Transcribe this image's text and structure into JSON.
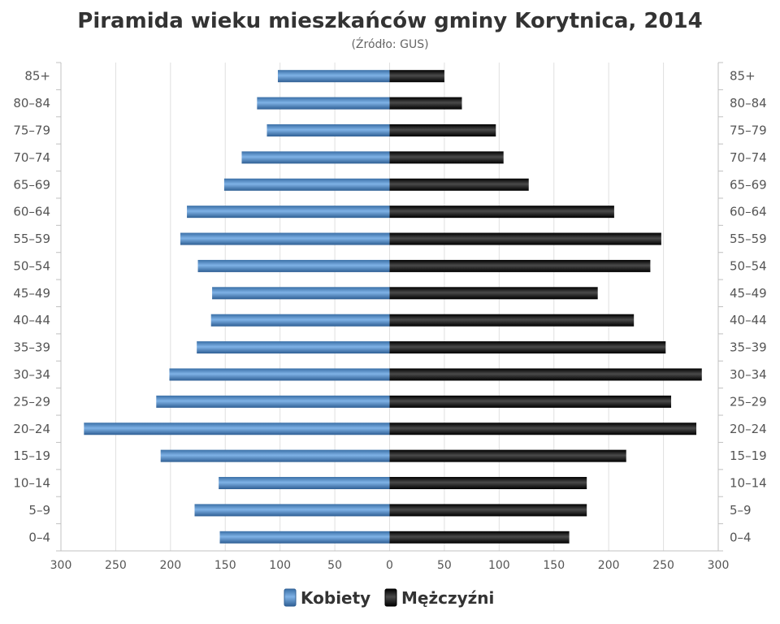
{
  "chart_data": {
    "type": "bar",
    "orientation": "horizontal",
    "layout": "population-pyramid",
    "title": "Piramida wieku mieszkańców gminy Korytnica, 2014",
    "subtitle": "(Źródło: GUS)",
    "categories": [
      "0-4",
      "5-9",
      "10-14",
      "15-19",
      "20-24",
      "25-29",
      "30-34",
      "35-39",
      "40-44",
      "45-49",
      "50-54",
      "55-59",
      "60-64",
      "65-69",
      "70-74",
      "75-79",
      "80-84",
      "85+"
    ],
    "category_labels_display": [
      "0–4",
      "5–9",
      "10–14",
      "15–19",
      "20–24",
      "25–29",
      "30–34",
      "35–39",
      "40–44",
      "45–49",
      "50–54",
      "55–59",
      "60–64",
      "65–69",
      "70–74",
      "75–79",
      "80–84",
      "85+"
    ],
    "series": [
      {
        "name": "Kobiety",
        "side": "left",
        "color": "#4a87c4",
        "values": [
          155,
          178,
          156,
          209,
          279,
          213,
          201,
          176,
          163,
          162,
          175,
          191,
          185,
          151,
          135,
          112,
          121,
          102
        ]
      },
      {
        "name": "Mężczyźni",
        "side": "right",
        "color": "#1a1a1a",
        "values": [
          164,
          180,
          180,
          216,
          280,
          257,
          285,
          252,
          223,
          190,
          238,
          248,
          205,
          127,
          104,
          97,
          66,
          50
        ]
      }
    ],
    "xlim": [
      -300,
      300
    ],
    "x_ticks": [
      300,
      250,
      200,
      150,
      100,
      50,
      0,
      50,
      100,
      150,
      200,
      250,
      300
    ],
    "grid": true,
    "legend_position": "bottom-center"
  }
}
